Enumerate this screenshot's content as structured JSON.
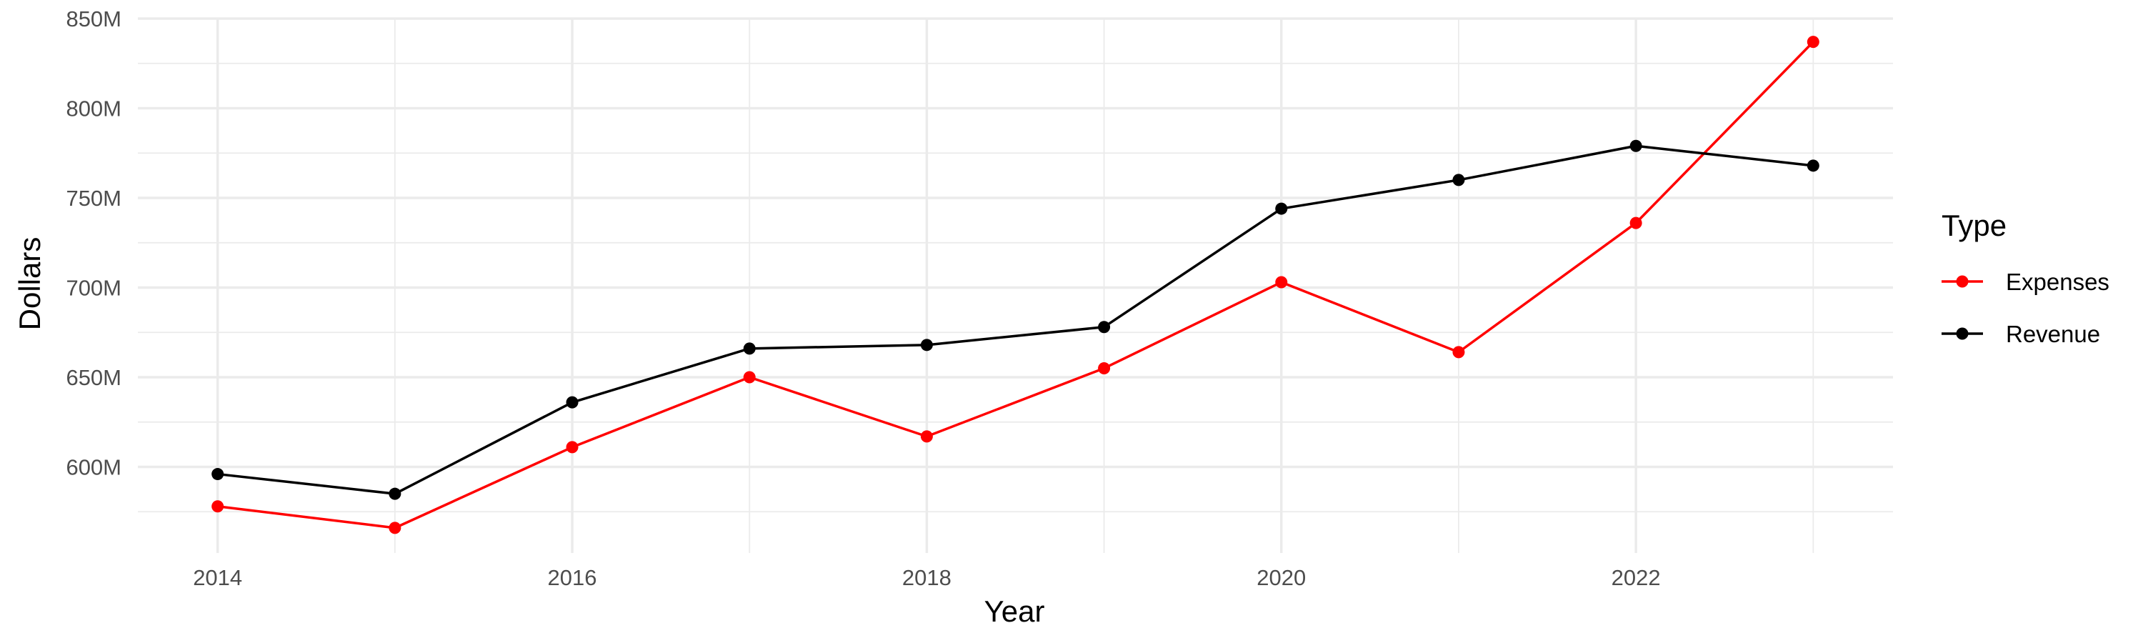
{
  "chart_data": {
    "type": "line",
    "title": "",
    "xlabel": "Year",
    "ylabel": "Dollars",
    "x": [
      2014,
      2015,
      2016,
      2017,
      2018,
      2019,
      2020,
      2021,
      2022,
      2023
    ],
    "x_ticks": [
      2014,
      2016,
      2018,
      2020,
      2022
    ],
    "x_tick_labels": [
      "2014",
      "2016",
      "2018",
      "2020",
      "2022"
    ],
    "xlim": [
      2013.55,
      2023.45
    ],
    "y_ticks": [
      600000000,
      650000000,
      700000000,
      750000000,
      800000000,
      850000000
    ],
    "y_tick_labels": [
      "600M",
      "650M",
      "700M",
      "750M",
      "800M",
      "850M"
    ],
    "ylim": [
      552000000,
      850000000
    ],
    "grid": true,
    "legend": {
      "title": "Type",
      "position": "right"
    },
    "series": [
      {
        "name": "Expenses",
        "color": "#ff0000",
        "values": [
          578000000,
          566000000,
          611000000,
          650000000,
          617000000,
          655000000,
          703000000,
          664000000,
          736000000,
          837000000
        ]
      },
      {
        "name": "Revenue",
        "color": "#000000",
        "values": [
          596000000,
          585000000,
          636000000,
          666000000,
          668000000,
          678000000,
          744000000,
          760000000,
          779000000,
          768000000
        ]
      }
    ]
  }
}
